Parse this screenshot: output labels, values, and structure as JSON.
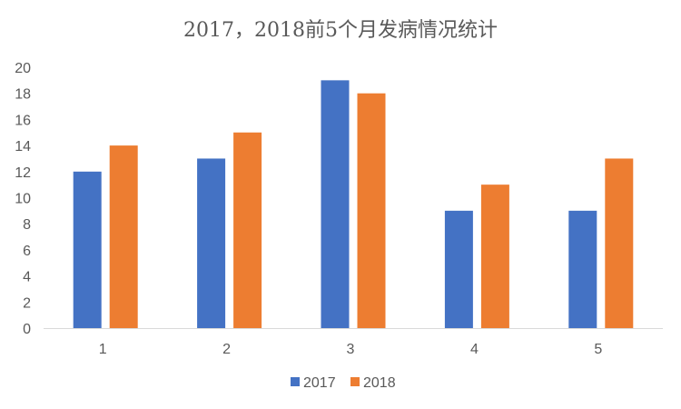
{
  "chart_data": {
    "type": "bar",
    "title": "2017，2018前5个月发病情况统计",
    "categories": [
      "1",
      "2",
      "3",
      "4",
      "5"
    ],
    "series": [
      {
        "name": "2017",
        "values": [
          12,
          13,
          19,
          9,
          9
        ],
        "color": "#4472C4"
      },
      {
        "name": "2018",
        "values": [
          14,
          15,
          18,
          11,
          13
        ],
        "color": "#ED7D31"
      }
    ],
    "xlabel": "",
    "ylabel": "",
    "ylim": [
      0,
      20
    ],
    "yticks": [
      0,
      2,
      4,
      6,
      8,
      10,
      12,
      14,
      16,
      18,
      20
    ],
    "grid": false,
    "legend": "bottom"
  }
}
